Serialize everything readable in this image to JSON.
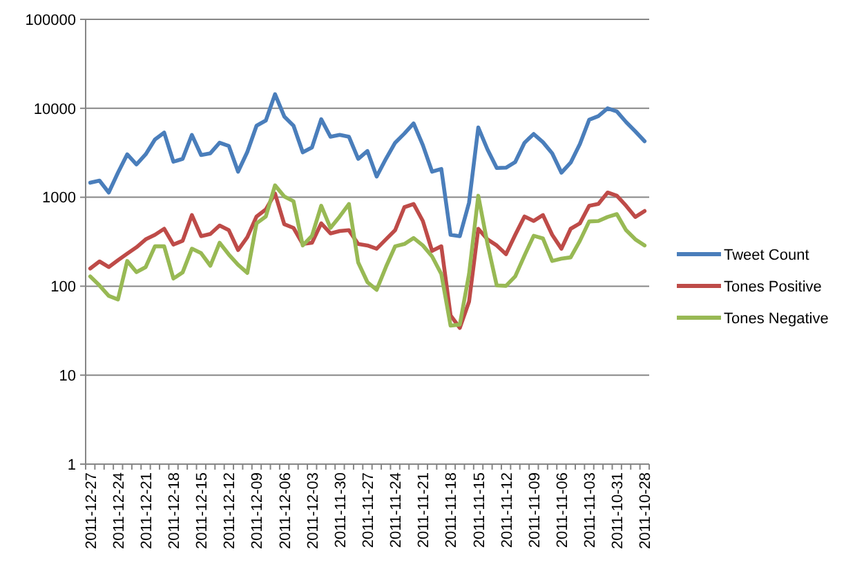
{
  "chart_data": {
    "type": "line",
    "categories": [
      "2011-12-27",
      null,
      null,
      "2011-12-24",
      null,
      null,
      "2011-12-21",
      null,
      null,
      "2011-12-18",
      null,
      null,
      "2011-12-15",
      null,
      null,
      "2011-12-12",
      null,
      null,
      "2011-12-09",
      null,
      null,
      "2011-12-06",
      null,
      null,
      "2011-12-03",
      null,
      null,
      "2011-11-30",
      null,
      null,
      "2011-11-27",
      null,
      null,
      "2011-11-24",
      null,
      null,
      "2011-11-21",
      null,
      null,
      "2011-11-18",
      null,
      null,
      "2011-11-15",
      null,
      null,
      "2011-11-12",
      null,
      null,
      "2011-11-09",
      null,
      null,
      "2011-11-06",
      null,
      null,
      "2011-11-03",
      null,
      null,
      "2011-10-31",
      null,
      null,
      "2011-10-28"
    ],
    "series": [
      {
        "name": "Tweet Count",
        "color": "#4a7ebb",
        "values": [
          1456,
          1540,
          1130,
          1890,
          3040,
          2340,
          3040,
          4460,
          5330,
          2510,
          2700,
          5020,
          2980,
          3120,
          4100,
          3770,
          1940,
          3230,
          6370,
          7280,
          14400,
          8090,
          6370,
          3200,
          3630,
          7530,
          4790,
          5020,
          4790,
          2700,
          3310,
          1710,
          2700,
          4100,
          5200,
          6760,
          3860,
          1940,
          2080,
          378,
          365,
          870,
          6080,
          3440,
          2130,
          2150,
          2490,
          4100,
          5140,
          4160,
          3120,
          1890,
          2450,
          3960,
          7430,
          8180,
          10000,
          9200,
          7000,
          5500,
          4260
        ]
      },
      {
        "name": "Tones Positive",
        "color": "#be4b48",
        "values": [
          158,
          190,
          164,
          196,
          232,
          274,
          336,
          378,
          442,
          294,
          324,
          631,
          365,
          387,
          481,
          426,
          255,
          356,
          608,
          728,
          1100,
          498,
          452,
          298,
          308,
          509,
          392,
          417,
          426,
          298,
          287,
          264,
          336,
          426,
          773,
          840,
          541,
          249,
          281,
          47,
          34,
          67,
          442,
          336,
          287,
          229,
          378,
          608,
          541,
          631,
          378,
          264,
          442,
          509,
          802,
          840,
          1130,
          1040,
          802,
          600,
          700
        ]
      },
      {
        "name": "Tones Negative",
        "color": "#98b954",
        "values": [
          129,
          102,
          78,
          71,
          192,
          144,
          164,
          281,
          281,
          122,
          143,
          264,
          235,
          170,
          308,
          227,
          174,
          141,
          509,
          608,
          1360,
          1020,
          902,
          287,
          369,
          802,
          452,
          608,
          840,
          185,
          111,
          91,
          164,
          281,
          298,
          348,
          287,
          216,
          137,
          36,
          37,
          137,
          1040,
          298,
          102,
          101,
          129,
          221,
          369,
          344,
          192,
          204,
          211,
          324,
          535,
          540,
          601,
          646,
          426,
          336,
          287
        ]
      }
    ],
    "log": "y",
    "ylim": [
      1,
      100000
    ],
    "yticks": [
      1,
      10,
      100,
      1000,
      10000,
      100000
    ],
    "grid": "y",
    "legend": "right",
    "line_style": "solid",
    "marker": "none"
  }
}
